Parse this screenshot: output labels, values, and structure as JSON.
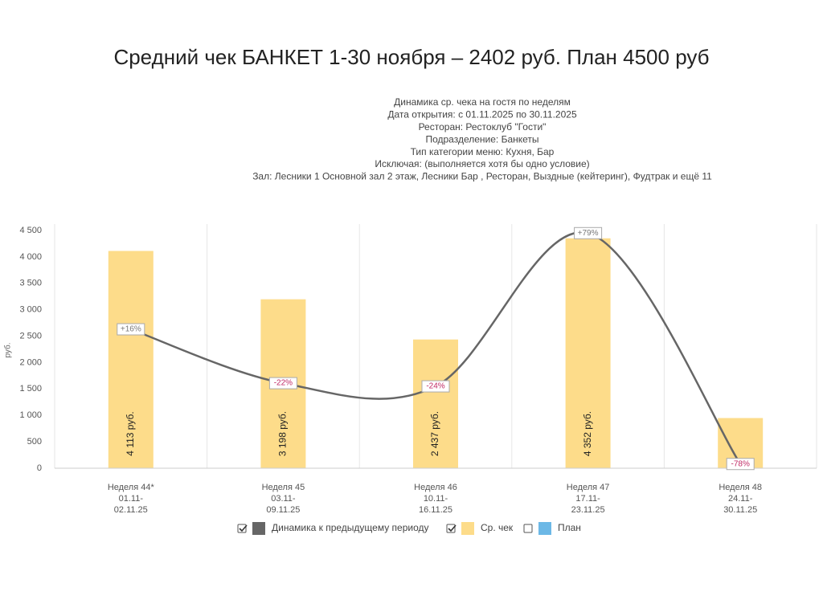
{
  "chart_data": {
    "type": "bar",
    "title": "Средний чек БАНКЕТ 1-30 ноября – 2402 руб. План 4500 руб",
    "subtitle": [
      "Динамика ср. чека на гостя по неделям",
      "Дата открытия: с 01.11.2025 по 30.11.2025",
      "Ресторан: Рестоклуб \"Гости\"",
      "Подразделение: Банкеты",
      "Тип категории меню: Кухня, Бар",
      "Исключая: (выполняется хотя бы одно условие)",
      "Зал: Лесники 1 Основной зал 2 этаж, Лесники Бар , Ресторан, Выздные (кейтеринг), Фудтрак и ещё 11"
    ],
    "y_label": "руб.",
    "categories": [
      [
        "Неделя 44*",
        "01.11-",
        "02.11.25"
      ],
      [
        "Неделя 45",
        "03.11-",
        "09.11.25"
      ],
      [
        "Неделя 46",
        "10.11-",
        "16.11.25"
      ],
      [
        "Неделя 47",
        "17.11-",
        "23.11.25"
      ],
      [
        "Неделя 48",
        "24.11-",
        "30.11.25"
      ]
    ],
    "ylim": [
      0,
      4500
    ],
    "yticks": [
      0,
      500,
      {
        "value": 1000,
        "label": "1 000"
      },
      {
        "value": 1500,
        "label": "1 500"
      },
      {
        "value": 2000,
        "label": "2 000"
      },
      {
        "value": 2500,
        "label": "2 500"
      },
      {
        "value": 3000,
        "label": "3 000"
      },
      {
        "value": 3500,
        "label": "3 500"
      },
      {
        "value": 4000,
        "label": "4 000"
      },
      {
        "value": 4500,
        "label": "4 500"
      }
    ],
    "series": [
      {
        "name": "Динамика к предыдущему периоду",
        "type": "line",
        "color": "#666666",
        "checked": true,
        "values": [
          2630,
          1610,
          1550,
          4450,
          80
        ],
        "value_labels": [
          "+16%",
          "-22%",
          "-24%",
          "+79%",
          "-78%"
        ]
      },
      {
        "name": "Ср. чек",
        "type": "bar",
        "color": "#fddc8a",
        "checked": true,
        "values": [
          4113,
          3198,
          2437,
          4352,
          950
        ],
        "value_labels": [
          "4 113 руб.",
          "3 198 руб.",
          "2 437 руб.",
          "4 352 руб.",
          null
        ]
      },
      {
        "name": "План",
        "type": "bar",
        "color": "#6cb8e6",
        "checked": false
      }
    ]
  }
}
